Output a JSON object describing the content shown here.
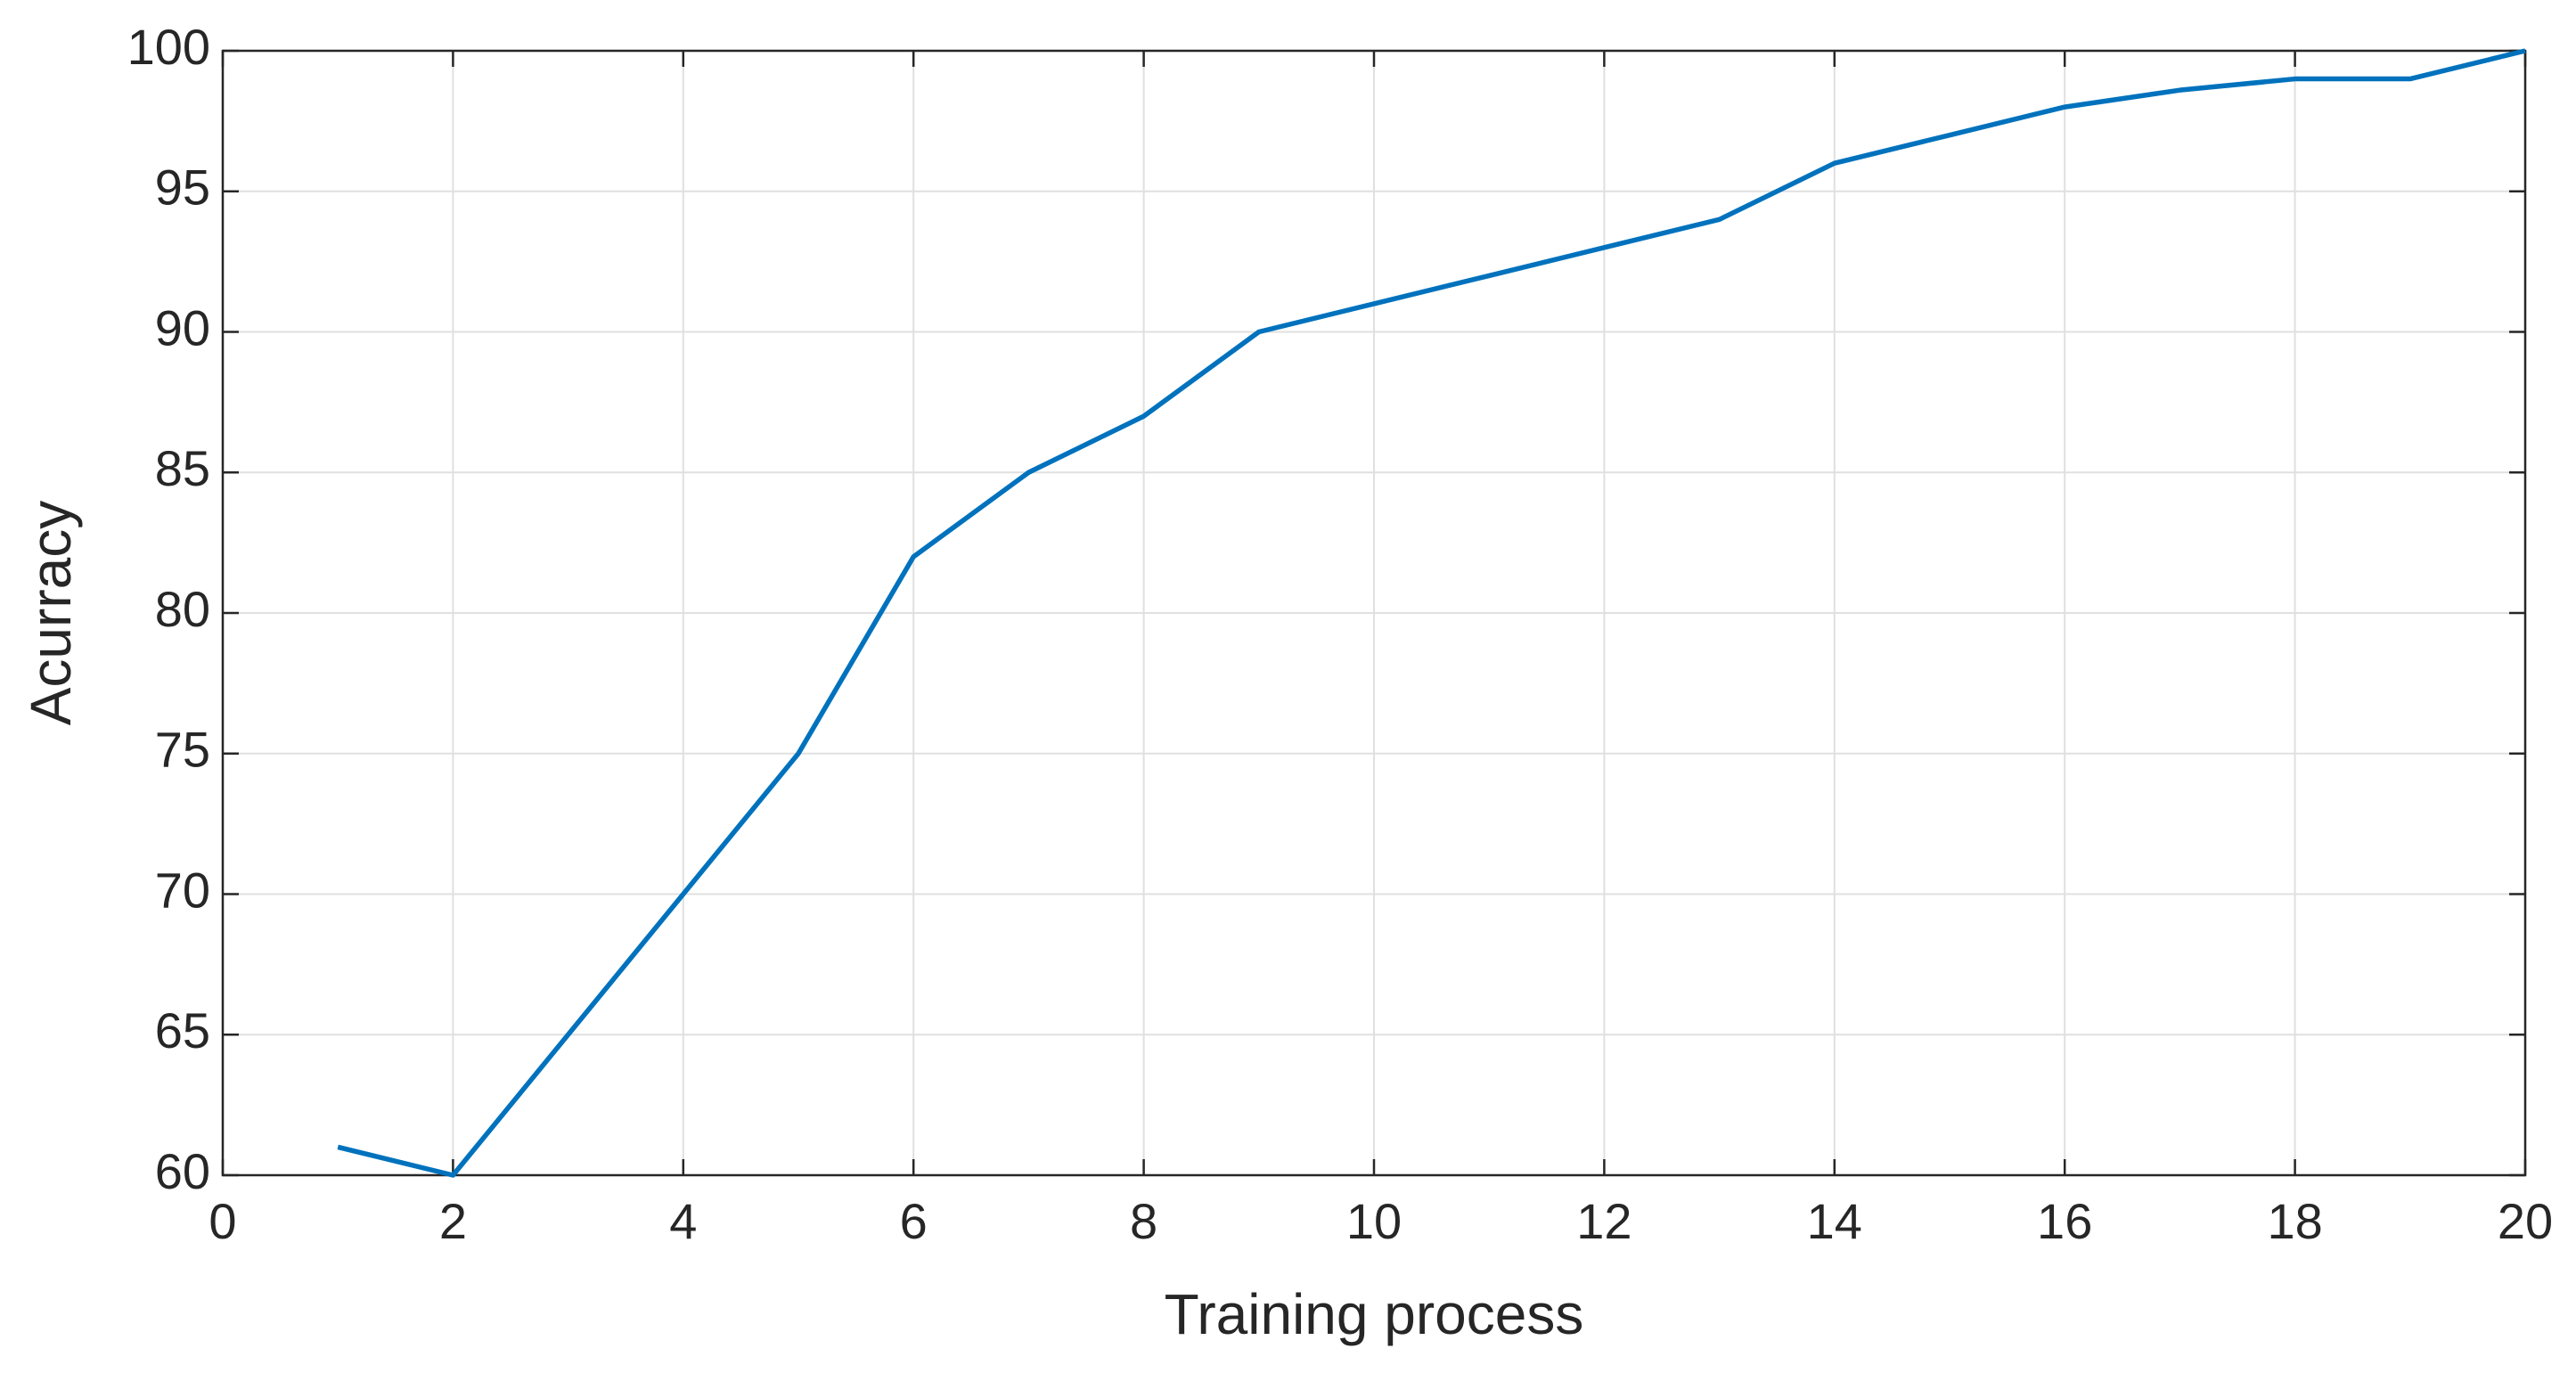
{
  "chart_data": {
    "type": "line",
    "x_label": "Training process",
    "y_label": "Acurracy",
    "x": [
      1,
      2,
      3,
      4,
      5,
      6,
      7,
      8,
      9,
      10,
      11,
      12,
      13,
      14,
      15,
      16,
      17,
      18,
      19,
      20
    ],
    "series": [
      {
        "color": "#0072bd",
        "values": [
          61,
          60,
          65,
          70,
          75,
          82,
          85,
          87,
          90,
          91,
          92,
          93,
          94,
          96,
          97,
          98,
          98.6,
          99,
          99,
          100
        ]
      }
    ],
    "xlim": [
      0,
      20
    ],
    "xticks": [
      0,
      2,
      4,
      6,
      8,
      10,
      12,
      14,
      16,
      18,
      20
    ],
    "ylim": [
      60,
      100
    ],
    "yticks": [
      60,
      65,
      70,
      75,
      80,
      85,
      90,
      95,
      100
    ],
    "grid": true
  }
}
